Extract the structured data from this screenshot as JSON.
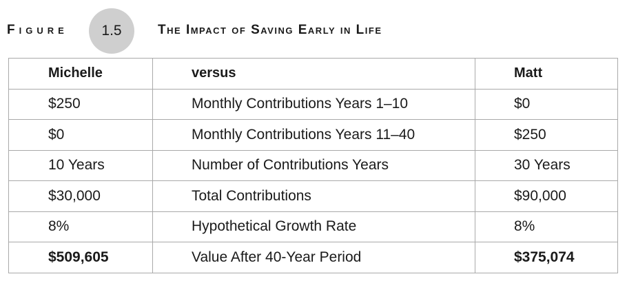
{
  "figure": {
    "label": "Figure",
    "number": "1.5",
    "title": "The Impact of Saving Early in Life"
  },
  "table": {
    "headers": [
      "Michelle",
      "versus",
      "Matt"
    ],
    "rows": [
      {
        "left": "$250",
        "middle": "Monthly Contributions Years 1–10",
        "right": "$0"
      },
      {
        "left": "$0",
        "middle": "Monthly Contributions Years 11–40",
        "right": "$250"
      },
      {
        "left": "10 Years",
        "middle": "Number of Contributions Years",
        "right": "30 Years"
      },
      {
        "left": "$30,000",
        "middle": "Total Contributions",
        "right": "$90,000"
      },
      {
        "left": "8%",
        "middle": "Hypothetical Growth Rate",
        "right": "8%"
      },
      {
        "left": "$509,605",
        "middle": "Value After 40-Year Period",
        "right": "$375,074"
      }
    ]
  }
}
